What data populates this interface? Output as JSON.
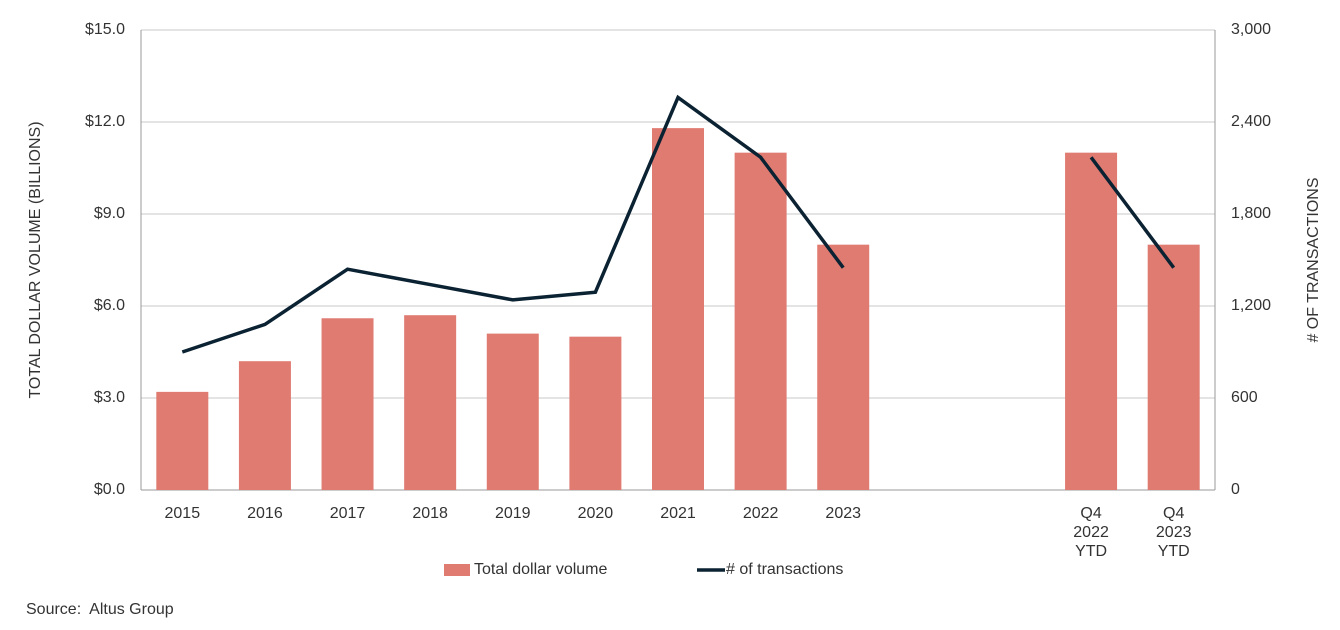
{
  "chart_data": {
    "type": "bar_line",
    "categories": [
      "2015",
      "2016",
      "2017",
      "2018",
      "2019",
      "2020",
      "2021",
      "2022",
      "2023",
      null,
      null,
      "Q4 2022 YTD",
      "Q4 2023 YTD"
    ],
    "series": [
      {
        "name": "Total dollar volume",
        "color": "#e07b72",
        "type": "bar",
        "values": [
          3.2,
          4.2,
          5.6,
          5.7,
          5.1,
          5.0,
          11.8,
          11.0,
          8.0,
          null,
          null,
          11.0,
          8.0
        ]
      },
      {
        "name": "# of transactions",
        "color": "#0b2233",
        "type": "line",
        "axis": "y2",
        "values": [
          900,
          1080,
          1440,
          1340,
          1240,
          1290,
          2560,
          2170,
          1450,
          null,
          null,
          2170,
          1450
        ]
      }
    ],
    "ylabel": "TOTAL DOLLAR VOLUME (BILLIONS)",
    "y2label": "# OF TRANSACTIONS",
    "ylim": [
      0,
      15
    ],
    "yticks": [
      {
        "value": 0,
        "label": "$0.0"
      },
      {
        "value": 3,
        "label": "$3.0"
      },
      {
        "value": 6,
        "label": "$6.0"
      },
      {
        "value": 9,
        "label": "$9.0"
      },
      {
        "value": 12,
        "label": "$12.0"
      },
      {
        "value": 15,
        "label": "$15.0"
      }
    ],
    "y2lim": [
      0,
      3000
    ],
    "y2ticks": [
      0,
      600,
      {
        "value": 1200,
        "label": "1,200"
      },
      {
        "value": 1800,
        "label": "1,800"
      },
      {
        "value": 2400,
        "label": "2,400"
      },
      {
        "value": 3000,
        "label": "3,000"
      }
    ],
    "grid": true,
    "legend": "bottom",
    "source": "Source:  Altus Group"
  }
}
